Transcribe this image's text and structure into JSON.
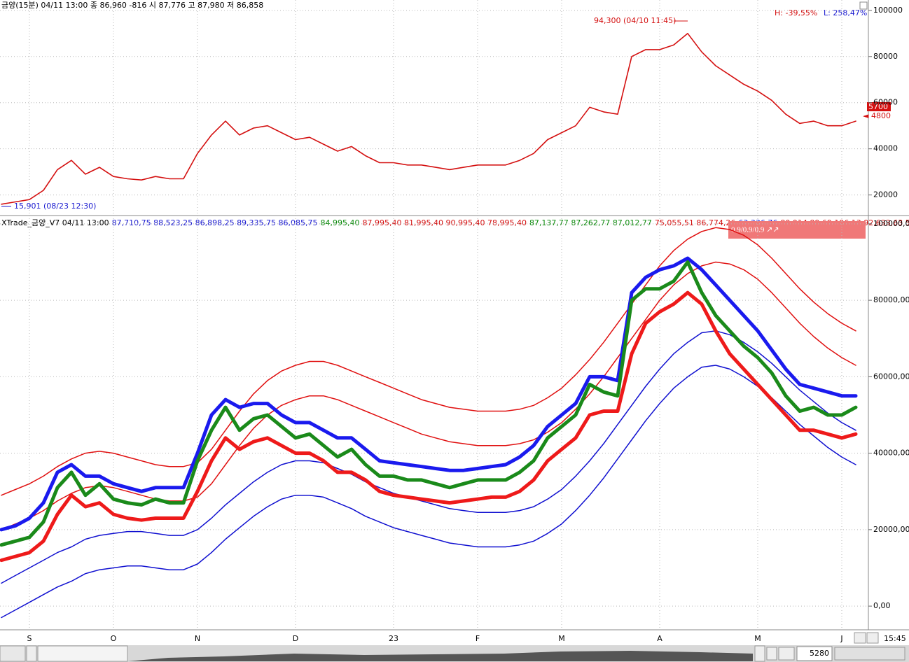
{
  "chart_data": {
    "type": "stock-panels",
    "categories": [
      null,
      null,
      "S",
      null,
      null,
      null,
      null,
      null,
      "O",
      null,
      null,
      null,
      null,
      null,
      "N",
      null,
      null,
      null,
      null,
      null,
      null,
      "D",
      null,
      null,
      null,
      null,
      null,
      null,
      "23",
      null,
      null,
      null,
      null,
      null,
      "F",
      null,
      null,
      null,
      null,
      null,
      "M",
      null,
      null,
      null,
      null,
      null,
      null,
      "A",
      null,
      null,
      null,
      null,
      null,
      null,
      "M",
      null,
      null,
      null,
      null,
      null,
      "J",
      null
    ],
    "panels": [
      {
        "title": "금양(15분) 04/11 13:00 종 86,960 -816 시 87,776 고 87,980 저 86,858",
        "ylim": [
          12000,
          104500
        ],
        "yticks": [
          20000,
          40000,
          60000,
          80000,
          100000
        ],
        "annotations": {
          "high": "94,300 (04/10 11:45)",
          "low": "15,901 (08/23 12:30)",
          "high_pct": "H: -39,55%",
          "low_pct": "L: 258,47%",
          "last_box": "5700",
          "last_mark": "4800"
        },
        "series": [
          {
            "color": "#d41010",
            "width": 1.6,
            "values": [
              16000,
              17000,
              18000,
              22000,
              31000,
              35000,
              29000,
              32000,
              28000,
              27000,
              26500,
              28000,
              27000,
              27000,
              38000,
              46000,
              52000,
              46000,
              49000,
              50000,
              47000,
              44000,
              45000,
              42000,
              39000,
              41000,
              37000,
              34000,
              34000,
              33000,
              33000,
              32000,
              31000,
              32000,
              33000,
              33000,
              33000,
              35000,
              38000,
              44000,
              47000,
              50000,
              58000,
              56000,
              55000,
              80000,
              83000,
              83000,
              85000,
              90000,
              82000,
              76000,
              72000,
              68000,
              65000,
              61000,
              55000,
              51000,
              52000,
              50000,
              50000,
              52000
            ]
          }
        ]
      },
      {
        "title_parts": [
          {
            "text": "XTrade_금양_V7  04/11 13:00",
            "color": "#000000"
          },
          {
            "text": "87,710,75 88,523,25 86,898,25 89,335,75 86,085,75",
            "color": "#1a1ad0"
          },
          {
            "text": "84,995,40",
            "color": "#0a8a0a"
          },
          {
            "text": "87,995,40 81,995,40 90,995,40 78,995,40",
            "color": "#d41010"
          },
          {
            "text": "87,137,77 87,262,77 87,012,77",
            "color": "#0a8a0a"
          },
          {
            "text": "75,055,51 86,774,26",
            "color": "#d41010"
          },
          {
            "text": "63,336,76",
            "color": "#1a1ad0"
          },
          {
            "text": "80,914,89 69,196,13 92,633,63 57,47",
            "color": "#d41010"
          }
        ],
        "badge": "0.9/0.9/0.9 ↗↗",
        "ylim": [
          -6200,
          101800
        ],
        "yticks": [
          {
            "value": 0,
            "label": "0,00"
          },
          {
            "value": 20000,
            "label": "20000,00"
          },
          {
            "value": 40000,
            "label": "40000,00"
          },
          {
            "value": 60000,
            "label": "60000,00"
          },
          {
            "value": 80000,
            "label": "80000,00"
          },
          {
            "value": 100000,
            "label": "100000,00"
          }
        ],
        "series": [
          {
            "color": "#e01010",
            "width": 1.5,
            "values": [
              29000,
              30500,
              32000,
              34000,
              36500,
              38500,
              40000,
              40500,
              40000,
              39000,
              38000,
              37000,
              36500,
              36500,
              37500,
              41000,
              46000,
              51000,
              55500,
              59000,
              61500,
              63000,
              64000,
              64000,
              63000,
              61500,
              60000,
              58500,
              57000,
              55500,
              54000,
              53000,
              52000,
              51500,
              51000,
              51000,
              51000,
              51500,
              52500,
              54500,
              57000,
              60500,
              64500,
              69000,
              74000,
              79000,
              84000,
              89000,
              93000,
              96000,
              98000,
              99000,
              98500,
              97000,
              94500,
              91000,
              87000,
              83000,
              79500,
              76500,
              74000,
              72000
            ]
          },
          {
            "color": "#e01010",
            "width": 1.5,
            "values": [
              20000,
              21500,
              23000,
              25000,
              27500,
              29500,
              31000,
              31500,
              31000,
              30000,
              29000,
              28000,
              27500,
              27500,
              28500,
              32000,
              37000,
              42000,
              46500,
              50000,
              52500,
              54000,
              55000,
              55000,
              54000,
              52500,
              51000,
              49500,
              48000,
              46500,
              45000,
              44000,
              43000,
              42500,
              42000,
              42000,
              42000,
              42500,
              43500,
              45500,
              48000,
              51500,
              55500,
              60000,
              65000,
              70000,
              75000,
              80000,
              84000,
              87000,
              89000,
              90000,
              89500,
              88000,
              85500,
              82000,
              78000,
              74000,
              70500,
              67500,
              65000,
              63000
            ]
          },
          {
            "color": "#1010d0",
            "width": 1.5,
            "values": [
              6000,
              8000,
              10000,
              12000,
              14000,
              15500,
              17500,
              18500,
              19000,
              19500,
              19500,
              19000,
              18500,
              18500,
              20000,
              23000,
              26500,
              29500,
              32500,
              35000,
              37000,
              38000,
              38000,
              37500,
              36000,
              34500,
              32500,
              31000,
              29500,
              28500,
              27500,
              26500,
              25500,
              25000,
              24500,
              24500,
              24500,
              25000,
              26000,
              28000,
              30500,
              34000,
              38000,
              42500,
              47500,
              52500,
              57500,
              62000,
              66000,
              69000,
              71500,
              72000,
              71000,
              69000,
              66500,
              63500,
              60000,
              56500,
              53500,
              50500,
              48000,
              46000
            ]
          },
          {
            "color": "#1010d0",
            "width": 1.5,
            "values": [
              -3000,
              -1000,
              1000,
              3000,
              5000,
              6500,
              8500,
              9500,
              10000,
              10500,
              10500,
              10000,
              9500,
              9500,
              11000,
              14000,
              17500,
              20500,
              23500,
              26000,
              28000,
              29000,
              29000,
              28500,
              27000,
              25500,
              23500,
              22000,
              20500,
              19500,
              18500,
              17500,
              16500,
              16000,
              15500,
              15500,
              15500,
              16000,
              17000,
              19000,
              21500,
              25000,
              29000,
              33500,
              38500,
              43500,
              48500,
              53000,
              57000,
              60000,
              62500,
              63000,
              62000,
              60000,
              57500,
              54500,
              51000,
              47500,
              44500,
              41500,
              39000,
              37000
            ]
          },
          {
            "color": "#ee1a1a",
            "width": 5,
            "values": [
              12000,
              13000,
              14000,
              17000,
              24000,
              29000,
              26000,
              27000,
              24000,
              23000,
              22500,
              23000,
              23000,
              23000,
              30000,
              38000,
              44000,
              41000,
              43000,
              44000,
              42000,
              40000,
              40000,
              38000,
              35000,
              35000,
              33000,
              30000,
              29000,
              28500,
              28000,
              27500,
              27000,
              27500,
              28000,
              28500,
              28500,
              30000,
              33000,
              38000,
              41000,
              44000,
              50000,
              51000,
              51000,
              66000,
              74000,
              77000,
              79000,
              82000,
              79000,
              72000,
              66000,
              62000,
              58000,
              54000,
              50000,
              46000,
              46000,
              45000,
              44000,
              45000
            ]
          },
          {
            "color": "#1a1aee",
            "width": 5,
            "values": [
              20000,
              21000,
              23000,
              27000,
              35000,
              37000,
              34000,
              34000,
              32000,
              31000,
              30000,
              31000,
              31000,
              31000,
              40000,
              50000,
              54000,
              52000,
              53000,
              53000,
              50000,
              48000,
              48000,
              46000,
              44000,
              44000,
              41000,
              38000,
              37500,
              37000,
              36500,
              36000,
              35500,
              35500,
              36000,
              36500,
              37000,
              39000,
              42000,
              47000,
              50000,
              53000,
              60000,
              60000,
              59000,
              82000,
              86000,
              88000,
              89000,
              91000,
              88000,
              84000,
              80000,
              76000,
              72000,
              67000,
              62000,
              58000,
              57000,
              56000,
              55000,
              55000
            ]
          },
          {
            "color": "#1a8a1a",
            "width": 5,
            "values": [
              16000,
              17000,
              18000,
              22000,
              31000,
              35000,
              29000,
              32000,
              28000,
              27000,
              26500,
              28000,
              27000,
              27000,
              38000,
              46000,
              52000,
              46000,
              49000,
              50000,
              47000,
              44000,
              45000,
              42000,
              39000,
              41000,
              37000,
              34000,
              34000,
              33000,
              33000,
              32000,
              31000,
              32000,
              33000,
              33000,
              33000,
              35000,
              38000,
              44000,
              47000,
              50000,
              58000,
              56000,
              55000,
              80000,
              83000,
              83000,
              85000,
              90000,
              82000,
              76000,
              72000,
              68000,
              65000,
              61000,
              55000,
              51000,
              52000,
              50000,
              50000,
              52000
            ]
          }
        ]
      }
    ]
  },
  "ui": {
    "count": "5280",
    "time": "15:45"
  }
}
